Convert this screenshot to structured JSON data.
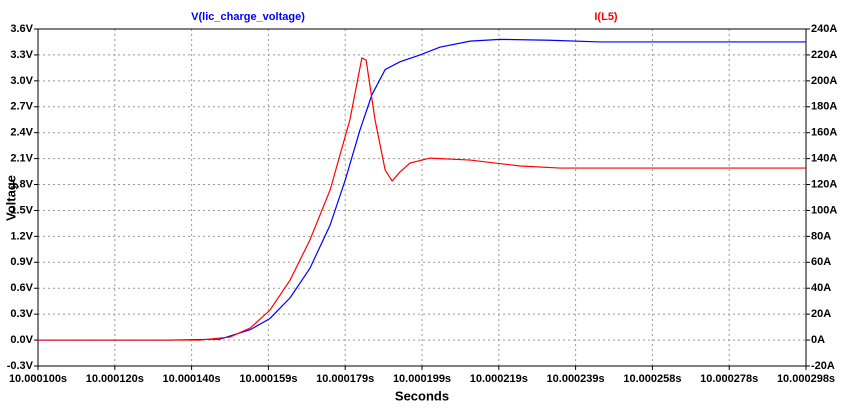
{
  "chart_data": {
    "type": "line",
    "xlabel": "Seconds",
    "ylabel": "Voltage",
    "grid": true,
    "xlim": [
      10.0001,
      10.000298
    ],
    "xticks": [
      {
        "value": 10.0001,
        "label": "10.000100s"
      },
      {
        "value": 10.0001198,
        "label": "10.000120s"
      },
      {
        "value": 10.0001396,
        "label": "10.000140s"
      },
      {
        "value": 10.0001594,
        "label": "10.000159s"
      },
      {
        "value": 10.0001792,
        "label": "10.000179s"
      },
      {
        "value": 10.000199,
        "label": "10.000199s"
      },
      {
        "value": 10.0002188,
        "label": "10.000219s"
      },
      {
        "value": 10.0002386,
        "label": "10.000239s"
      },
      {
        "value": 10.0002584,
        "label": "10.000258s"
      },
      {
        "value": 10.0002782,
        "label": "10.000278s"
      },
      {
        "value": 10.000298,
        "label": "10.000298s"
      }
    ],
    "ylim": [
      -0.3,
      3.6
    ],
    "yticks": [
      {
        "value": 3.6,
        "label": "3.6V"
      },
      {
        "value": 3.3,
        "label": "3.3V"
      },
      {
        "value": 3.0,
        "label": "3.0V"
      },
      {
        "value": 2.7,
        "label": "2.7V"
      },
      {
        "value": 2.4,
        "label": "2.4V"
      },
      {
        "value": 2.1,
        "label": "2.1V"
      },
      {
        "value": 1.8,
        "label": "1.8V"
      },
      {
        "value": 1.5,
        "label": "1.5V"
      },
      {
        "value": 1.2,
        "label": "1.2V"
      },
      {
        "value": 0.9,
        "label": "0.9V"
      },
      {
        "value": 0.6,
        "label": "0.6V"
      },
      {
        "value": 0.3,
        "label": "0.3V"
      },
      {
        "value": 0.0,
        "label": "0.0V"
      },
      {
        "value": -0.3,
        "label": "-0.3V"
      }
    ],
    "y2lim": [
      -20,
      240
    ],
    "y2ticks": [
      {
        "value": 240,
        "label": "240A"
      },
      {
        "value": 220,
        "label": "220A"
      },
      {
        "value": 200,
        "label": "200A"
      },
      {
        "value": 180,
        "label": "180A"
      },
      {
        "value": 160,
        "label": "160A"
      },
      {
        "value": 140,
        "label": "140A"
      },
      {
        "value": 120,
        "label": "120A"
      },
      {
        "value": 100,
        "label": "100A"
      },
      {
        "value": 80,
        "label": "80A"
      },
      {
        "value": 60,
        "label": "60A"
      },
      {
        "value": 40,
        "label": "40A"
      },
      {
        "value": 20,
        "label": "20A"
      },
      {
        "value": 0,
        "label": "0A"
      },
      {
        "value": -20,
        "label": "-20A"
      }
    ],
    "series": [
      {
        "name": "V(lic_charge_voltage)",
        "color": "#0000ff",
        "axis": "y",
        "x": [
          10.0001,
          10.000134,
          10.0001469,
          10.0001547,
          10.0001598,
          10.000165,
          10.0001701,
          10.0001753,
          10.0001792,
          10.000183,
          10.0001861,
          10.0001895,
          10.0001933,
          10.0001985,
          10.0002036,
          10.0002114,
          10.0002191,
          10.000232,
          10.0002449,
          10.0002707,
          10.000298
        ],
        "values": [
          0,
          0,
          0.01,
          0.12,
          0.25,
          0.49,
          0.83,
          1.33,
          1.85,
          2.43,
          2.84,
          3.13,
          3.22,
          3.3,
          3.39,
          3.46,
          3.48,
          3.47,
          3.45,
          3.45,
          3.45
        ]
      },
      {
        "name": "I(L5)",
        "color": "#ff0000",
        "axis": "y2",
        "x": [
          10.0001,
          10.0001418,
          10.0001495,
          10.0001547,
          10.0001598,
          10.000165,
          10.0001701,
          10.0001753,
          10.0001804,
          10.0001835,
          10.0001846,
          10.0001869,
          10.0001895,
          10.0001913,
          10.0001933,
          10.0001959,
          10.0002011,
          10.0002114,
          10.0002243,
          10.0002346,
          10.0002707,
          10.000298
        ],
        "values": [
          0,
          0,
          2.3,
          9.3,
          23.1,
          46.3,
          77.2,
          115.7,
          169.8,
          217.6,
          216,
          169.8,
          131.2,
          122.7,
          129.6,
          136.6,
          140.4,
          138.9,
          134.3,
          132.7,
          132.7,
          132.7
        ]
      }
    ]
  }
}
